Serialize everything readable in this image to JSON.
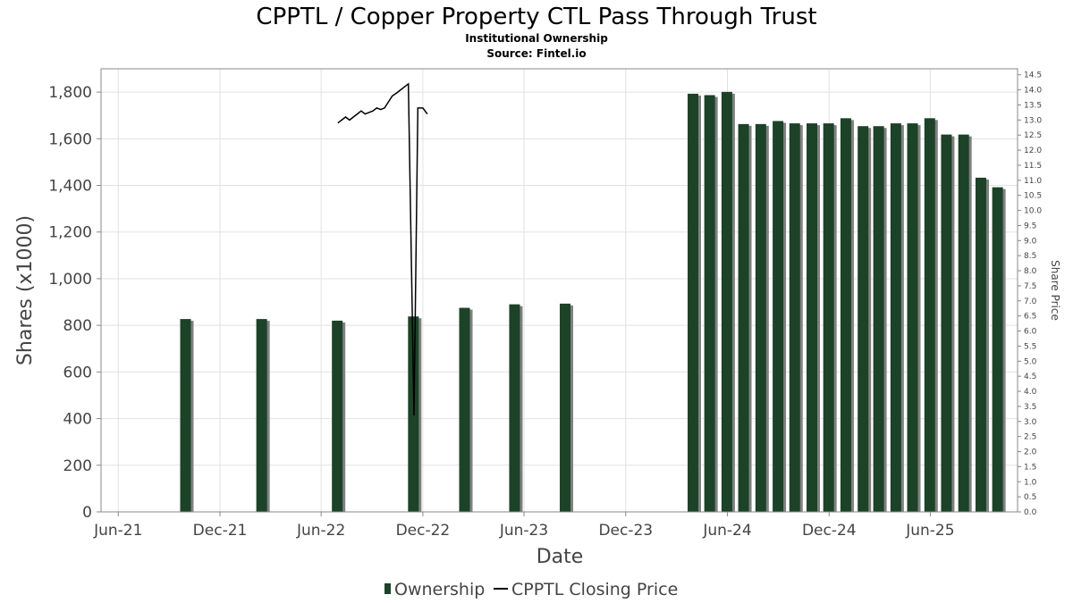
{
  "chart_data": {
    "type": "bar",
    "title": "CPPTL / Copper Property CTL Pass Through Trust",
    "subtitle_1": "Institutional Ownership",
    "subtitle_2": "Source: Fintel.io",
    "xlabel": "Date",
    "ylabel": "Shares (x1000)",
    "y2label": "Share Price",
    "x_domain": [
      "2021-05-01",
      "2025-11-05"
    ],
    "ylim": [
      0,
      1900
    ],
    "y2lim": [
      0,
      14.7
    ],
    "yticks": [
      0,
      200,
      400,
      600,
      800,
      1000,
      1200,
      1400,
      1600,
      1800
    ],
    "ytick_labels": [
      "0",
      "200",
      "400",
      "600",
      "800",
      "1,000",
      "1,200",
      "1,400",
      "1,600",
      "1,800"
    ],
    "y2ticks": [
      0.0,
      0.5,
      1.0,
      1.5,
      2.0,
      2.5,
      3.0,
      3.5,
      4.0,
      4.5,
      5.0,
      5.5,
      6.0,
      6.5,
      7.0,
      7.5,
      8.0,
      8.5,
      9.0,
      9.5,
      10.0,
      10.5,
      11.0,
      11.5,
      12.0,
      12.5,
      13.0,
      13.5,
      14.0,
      14.5
    ],
    "y2tick_labels": [
      "0.0",
      "0.5",
      "1.0",
      "1.5",
      "2.0",
      "2.5",
      "3.0",
      "3.5",
      "4.0",
      "4.5",
      "5.0",
      "5.5",
      "6.0",
      "6.5",
      "7.0",
      "7.5",
      "8.0",
      "8.5",
      "9.0",
      "9.5",
      "10.0",
      "10.5",
      "11.0",
      "11.5",
      "12.0",
      "12.5",
      "13.0",
      "13.5",
      "14.0",
      "14.5"
    ],
    "xticks": [
      "2021-06-01",
      "2021-12-01",
      "2022-06-01",
      "2022-12-01",
      "2023-06-01",
      "2023-12-01",
      "2024-06-01",
      "2024-12-01",
      "2025-06-01"
    ],
    "xtick_labels": [
      "Jun-21",
      "Dec-21",
      "Jun-22",
      "Dec-22",
      "Jun-23",
      "Dec-23",
      "Jun-24",
      "Dec-24",
      "Jun-25"
    ],
    "grid": true,
    "legend_position": "bottom-center",
    "colors": {
      "bar": "#1c4228",
      "bar_shadow": "#808080",
      "line": "#000000",
      "grid": "#e2e2e2",
      "plot_border": "#888888"
    },
    "series": [
      {
        "name": "Ownership",
        "type": "bar",
        "axis": "left",
        "x": [
          "2021-09-30",
          "2022-02-14",
          "2022-06-30",
          "2022-11-14",
          "2023-02-14",
          "2023-05-15",
          "2023-08-14",
          "2024-03-31",
          "2024-04-30",
          "2024-05-31",
          "2024-06-30",
          "2024-07-31",
          "2024-08-31",
          "2024-09-30",
          "2024-10-31",
          "2024-11-30",
          "2024-12-31",
          "2025-01-31",
          "2025-02-28",
          "2025-03-31",
          "2025-04-30",
          "2025-05-31",
          "2025-06-30",
          "2025-07-31",
          "2025-08-31",
          "2025-09-30"
        ],
        "values": [
          827,
          827,
          820,
          838,
          875,
          890,
          893,
          1793,
          1787,
          1801,
          1663,
          1663,
          1676,
          1666,
          1666,
          1666,
          1688,
          1654,
          1654,
          1666,
          1666,
          1688,
          1618,
          1618,
          1433,
          1392
        ]
      },
      {
        "name": "CPPTL Closing Price",
        "type": "line",
        "axis": "right",
        "x": [
          "2022-07-01",
          "2022-07-08",
          "2022-07-15",
          "2022-07-22",
          "2022-07-29",
          "2022-08-05",
          "2022-08-12",
          "2022-08-19",
          "2022-08-26",
          "2022-09-02",
          "2022-09-09",
          "2022-09-16",
          "2022-09-23",
          "2022-09-30",
          "2022-10-07",
          "2022-10-15",
          "2022-10-22",
          "2022-10-29",
          "2022-11-05",
          "2022-11-15",
          "2022-11-22",
          "2022-12-01",
          "2022-12-09"
        ],
        "values": [
          12.9,
          13.0,
          13.1,
          13.0,
          13.1,
          13.2,
          13.3,
          13.2,
          13.25,
          13.3,
          13.4,
          13.35,
          13.4,
          13.6,
          13.8,
          13.9,
          14.0,
          14.1,
          14.2,
          3.2,
          13.4,
          13.4,
          13.2
        ]
      }
    ]
  }
}
